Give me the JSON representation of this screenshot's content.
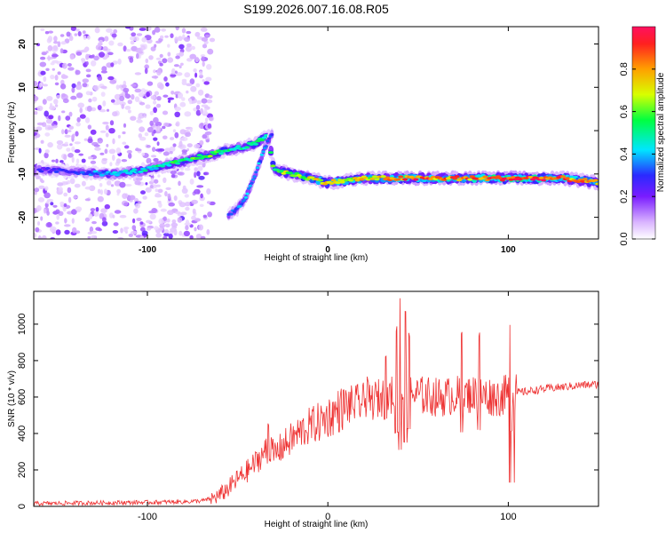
{
  "page": {
    "title": "S199.2026.007.16.08.R05"
  },
  "chart_data": [
    {
      "type": "heatmap",
      "title": "S199.2026.007.16.08.R05",
      "xlabel": "Height of straight line (km)",
      "ylabel": "Frequency (Hz)",
      "xlim": [
        -163,
        150
      ],
      "ylim": [
        -25,
        24
      ],
      "x_ticks": [
        -100,
        0,
        100
      ],
      "x_tick_labels": [
        "-100",
        "0",
        "100"
      ],
      "y_ticks": [
        -20,
        -10,
        0,
        10,
        20
      ],
      "y_tick_labels": [
        "-20",
        "-10",
        "0",
        "10",
        "20"
      ],
      "colorbar": {
        "label": "Normalized spectral amplitude",
        "range": [
          0,
          1
        ],
        "ticks": [
          0.0,
          0.2,
          0.4,
          0.6,
          0.8
        ],
        "tick_labels": [
          "0.0",
          "0.2",
          "0.4",
          "0.6",
          "0.8"
        ]
      },
      "ridge": {
        "x": [
          -160,
          -140,
          -120,
          -100,
          -90,
          -80,
          -70,
          -60,
          -50,
          -40,
          -33,
          -30,
          -20,
          -10,
          0,
          10,
          20,
          30,
          40,
          50,
          60,
          70,
          80,
          90,
          100,
          110,
          120,
          130,
          140,
          150
        ],
        "frequency": [
          -9,
          -9.5,
          -10,
          -9,
          -8,
          -7,
          -6,
          -5,
          -4,
          -3,
          -1,
          -9,
          -10,
          -11,
          -12,
          -11.5,
          -11,
          -11,
          -11,
          -11,
          -11,
          -11,
          -11,
          -11,
          -11,
          -11,
          -11,
          -11,
          -11.5,
          -12
        ],
        "amplitude": [
          0.25,
          0.3,
          0.4,
          0.45,
          0.5,
          0.55,
          0.6,
          0.55,
          0.5,
          0.55,
          0.5,
          0.6,
          0.65,
          0.7,
          0.7,
          0.75,
          0.7,
          0.75,
          0.85,
          0.9,
          0.85,
          0.85,
          0.85,
          0.9,
          0.95,
          0.95,
          0.9,
          0.85,
          0.8,
          0.8
        ]
      },
      "secondary_ridge": {
        "x": [
          -55,
          -50,
          -45,
          -40,
          -35,
          -31
        ],
        "frequency": [
          -19.5,
          -18,
          -15,
          -10,
          -4,
          -1
        ],
        "amplitude": [
          0.3,
          0.35,
          0.4,
          0.4,
          0.35,
          0.3
        ]
      },
      "noise_region": {
        "x_range": [
          -163,
          -72
        ],
        "frequency_range": [
          -25,
          24
        ],
        "amplitude": 0.15
      }
    },
    {
      "type": "line",
      "xlabel": "Height of straight line (km)",
      "ylabel": "SNR (10 * v/v)",
      "xlim": [
        -163,
        150
      ],
      "ylim": [
        0,
        1180
      ],
      "x_ticks": [
        -100,
        0,
        100
      ],
      "x_tick_labels": [
        "-100",
        "0",
        "100"
      ],
      "y_ticks": [
        0,
        200,
        400,
        600,
        800,
        1000
      ],
      "y_tick_labels": [
        "0",
        "200",
        "400",
        "600",
        "800",
        "1000"
      ],
      "series": [
        {
          "name": "SNR",
          "color": "#ee3333",
          "x": [
            -163,
            -140,
            -120,
            -100,
            -80,
            -70,
            -65,
            -60,
            -55,
            -50,
            -45,
            -40,
            -35,
            -32,
            -30,
            -28,
            -25,
            -20,
            -15,
            -10,
            -5,
            0,
            5,
            10,
            15,
            20,
            25,
            30,
            35,
            40,
            45,
            50,
            55,
            60,
            65,
            70,
            75,
            80,
            85,
            90,
            95,
            100,
            102,
            105,
            110,
            120,
            130,
            140,
            150
          ],
          "y": [
            15,
            18,
            20,
            22,
            25,
            30,
            40,
            60,
            100,
            150,
            190,
            240,
            300,
            330,
            280,
            300,
            330,
            370,
            410,
            440,
            460,
            490,
            520,
            550,
            560,
            570,
            580,
            600,
            610,
            620,
            615,
            610,
            605,
            600,
            600,
            610,
            610,
            615,
            610,
            605,
            600,
            620,
            630,
            625,
            630,
            645,
            655,
            665,
            670
          ],
          "spikes": [
            {
              "x": -33,
              "y": 460
            },
            {
              "x": 22,
              "y": 720
            },
            {
              "x": 32,
              "y": 830
            },
            {
              "x": 38,
              "y": 1000
            },
            {
              "x": 40,
              "y": 1180
            },
            {
              "x": 43,
              "y": 1100
            },
            {
              "x": 45,
              "y": 960
            },
            {
              "x": 74,
              "y": 980
            },
            {
              "x": 84,
              "y": 960
            },
            {
              "x": 101,
              "y": 1020
            }
          ]
        }
      ]
    }
  ]
}
